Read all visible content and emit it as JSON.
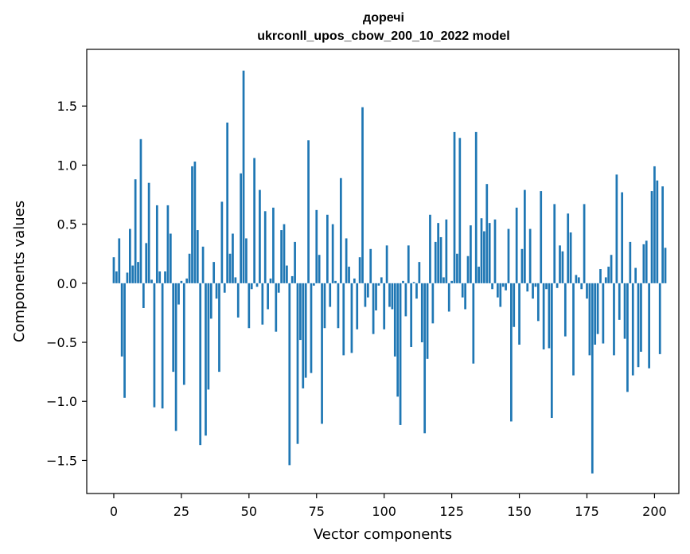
{
  "chart_data": {
    "type": "bar",
    "title": "доречі",
    "subtitle": "ukrconll_upos_cbow_200_10_2022 model",
    "xlabel": "Vector components",
    "ylabel": "Components values",
    "xlim": [
      -10,
      209
    ],
    "ylim": [
      -1.78,
      1.98
    ],
    "xticks": [
      0,
      25,
      50,
      75,
      100,
      125,
      150,
      175,
      200
    ],
    "yticks": [
      -1.5,
      -1.0,
      -0.5,
      0.0,
      0.5,
      1.0,
      1.5
    ],
    "ytick_labels": [
      "−1.5",
      "−1.0",
      "−0.5",
      "0.0",
      "0.5",
      "1.0",
      "1.5"
    ],
    "grid": false,
    "bar_color": "#1f77b4",
    "values": [
      0.22,
      0.1,
      0.38,
      -0.62,
      -0.97,
      0.09,
      0.46,
      0.15,
      0.88,
      0.18,
      1.22,
      -0.21,
      0.34,
      0.85,
      0.03,
      -1.05,
      0.66,
      0.1,
      -1.06,
      0.1,
      0.66,
      0.42,
      -0.75,
      -1.25,
      -0.18,
      0.02,
      -0.86,
      0.04,
      0.25,
      0.99,
      1.03,
      0.45,
      -1.37,
      0.31,
      -1.29,
      -0.9,
      -0.3,
      0.18,
      -0.13,
      -0.75,
      0.69,
      -0.08,
      1.36,
      0.25,
      0.42,
      0.05,
      -0.29,
      0.93,
      1.8,
      0.38,
      -0.38,
      -0.05,
      1.06,
      -0.03,
      0.79,
      -0.35,
      0.61,
      -0.22,
      0.04,
      0.64,
      -0.41,
      -0.08,
      0.45,
      0.5,
      0.15,
      -1.54,
      0.06,
      0.35,
      -1.36,
      -0.48,
      -0.89,
      -0.8,
      1.21,
      -0.76,
      -0.02,
      0.62,
      0.24,
      -1.19,
      -0.38,
      0.58,
      -0.2,
      0.5,
      0.02,
      -0.38,
      0.89,
      -0.61,
      0.38,
      0.14,
      -0.59,
      0.04,
      -0.39,
      0.22,
      1.49,
      -0.2,
      -0.12,
      0.29,
      -0.43,
      -0.23,
      -0.02,
      0.05,
      -0.39,
      0.32,
      -0.2,
      -0.22,
      -0.62,
      -0.96,
      -1.2,
      0.02,
      -0.28,
      0.32,
      -0.54,
      0.01,
      -0.13,
      0.18,
      -0.5,
      -1.27,
      -0.64,
      0.58,
      -0.34,
      0.35,
      0.51,
      0.39,
      0.05,
      0.54,
      -0.24,
      0.02,
      1.28,
      0.25,
      1.23,
      -0.12,
      -0.22,
      0.23,
      0.49,
      -0.68,
      1.28,
      0.14,
      0.55,
      0.44,
      0.84,
      0.51,
      -0.05,
      0.54,
      -0.12,
      -0.2,
      -0.03,
      -0.06,
      0.46,
      -1.17,
      -0.37,
      0.64,
      -0.52,
      0.29,
      0.79,
      -0.07,
      0.46,
      -0.13,
      -0.03,
      -0.32,
      0.78,
      -0.56,
      -0.05,
      -0.55,
      -1.14,
      0.67,
      -0.04,
      0.32,
      0.27,
      -0.45,
      0.59,
      0.43,
      -0.78,
      0.07,
      0.05,
      -0.05,
      0.67,
      -0.13,
      -0.61,
      -1.61,
      -0.52,
      -0.43,
      0.12,
      -0.51,
      0.05,
      0.14,
      0.24,
      -0.61,
      0.92,
      -0.31,
      0.77,
      -0.47,
      -0.92,
      0.35,
      -0.78,
      0.13,
      -0.71,
      -0.58,
      0.33,
      0.36,
      -0.72,
      0.78,
      0.99,
      0.87,
      -0.6,
      0.82,
      0.3
    ]
  }
}
